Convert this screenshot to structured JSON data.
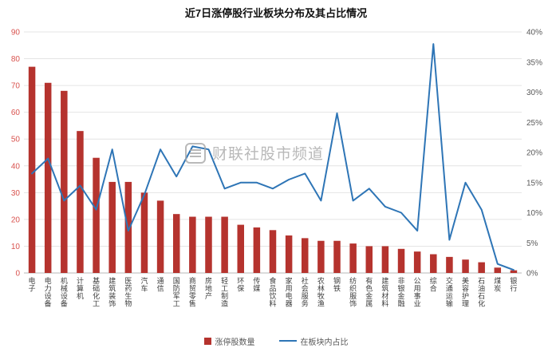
{
  "watermark": {
    "text": "财联社股市频道"
  },
  "chart_data": {
    "type": "bar-line-combo",
    "title": "近7日涨停股行业板块分布及其占比情况",
    "categories": [
      "电子",
      "电力设备",
      "机械设备",
      "计算机",
      "基础化工",
      "建筑装饰",
      "医药生物",
      "汽车",
      "通信",
      "国防军工",
      "商贸零售",
      "房地产",
      "轻工制造",
      "环保",
      "传媒",
      "食品饮料",
      "家用电器",
      "社会服务",
      "农林牧渔",
      "钢铁",
      "纺织服饰",
      "有色金属",
      "建筑材料",
      "非银金融",
      "公用事业",
      "综合",
      "交通运输",
      "美容护理",
      "石油石化",
      "煤炭",
      "银行"
    ],
    "series": [
      {
        "name": "涨停股数量",
        "type": "bar",
        "axis": "left",
        "color": "#b5332e",
        "values": [
          77,
          71,
          68,
          53,
          43,
          34,
          34,
          30,
          27,
          22,
          21,
          21,
          21,
          18,
          17,
          16,
          14,
          13,
          12,
          12,
          11,
          10,
          10,
          9,
          8,
          7,
          6,
          5,
          4,
          2,
          1
        ]
      },
      {
        "name": "在板块内占比",
        "type": "line",
        "axis": "right",
        "color": "#2e75b6",
        "values": [
          16.5,
          19,
          12,
          14.5,
          10.5,
          20.5,
          7,
          13,
          20.5,
          16,
          21,
          20.5,
          14,
          15,
          15,
          14,
          15.5,
          16.5,
          12,
          26.5,
          12,
          14,
          11,
          10,
          7,
          38,
          5.5,
          15,
          10.5,
          1.5,
          0.5
        ]
      }
    ],
    "left_axis": {
      "min": 0,
      "max": 90,
      "step": 10,
      "color": "#d9534f",
      "tick_labels": [
        "0",
        "10",
        "20",
        "30",
        "40",
        "50",
        "60",
        "70",
        "80",
        "90"
      ]
    },
    "right_axis": {
      "min": 0,
      "max": 40,
      "step": 5,
      "color": "#595959",
      "format": "percent",
      "tick_labels": [
        "0%",
        "5%",
        "10%",
        "15%",
        "20%",
        "25%",
        "30%",
        "35%",
        "40%"
      ]
    },
    "grid": true,
    "legend_position": "bottom"
  }
}
